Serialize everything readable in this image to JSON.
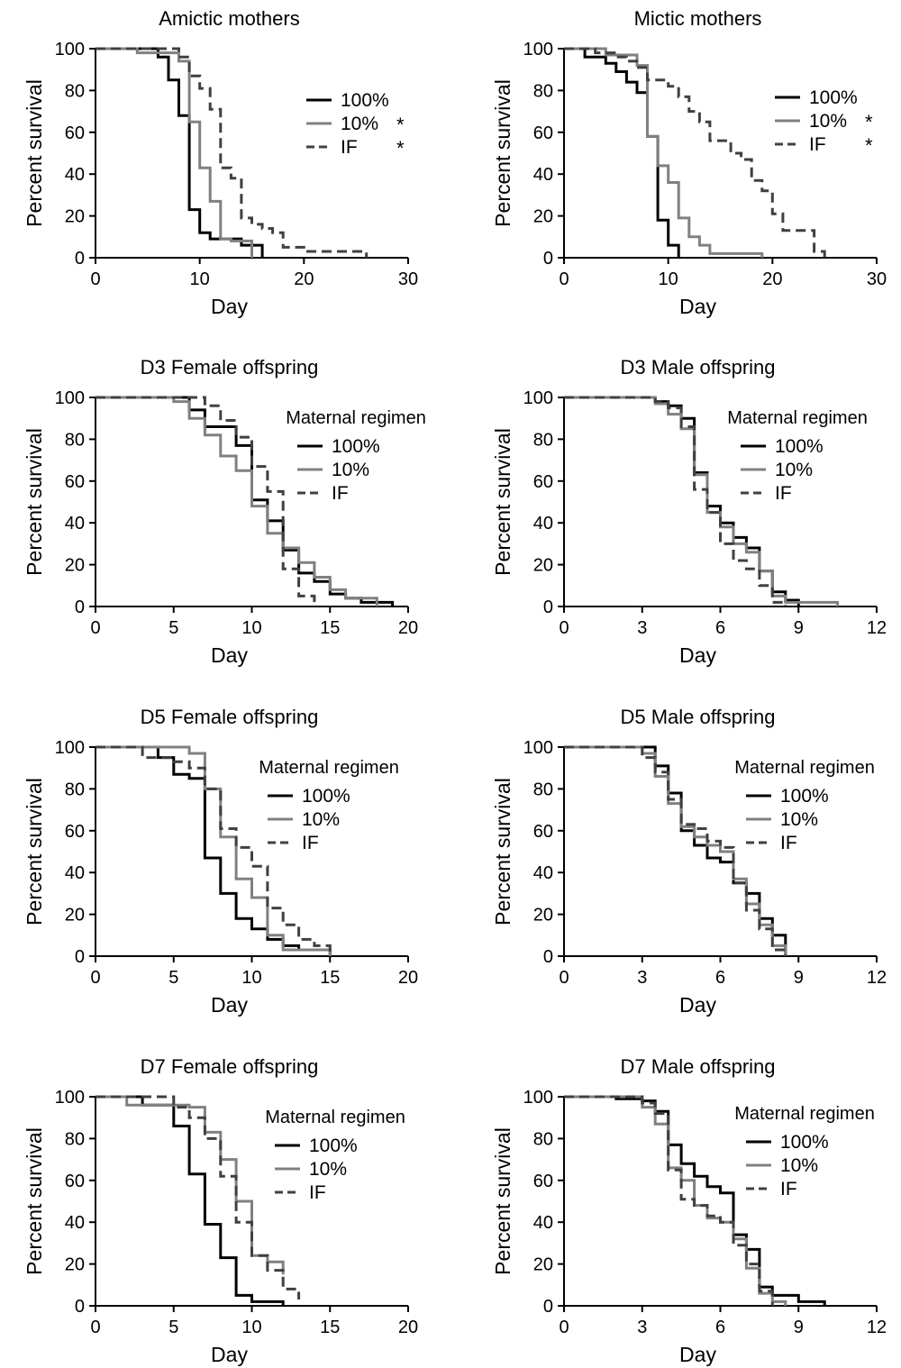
{
  "chart_data": [
    {
      "type": "line",
      "title": "Amictic mothers",
      "xlabel": "Day",
      "ylabel": "Percent survival",
      "xlim": [
        0,
        30
      ],
      "ylim": [
        0,
        100
      ],
      "xticks": [
        0,
        10,
        20,
        30
      ],
      "yticks": [
        0,
        20,
        40,
        60,
        80,
        100
      ],
      "legend_title": "",
      "legend_position": "top-right",
      "series": [
        {
          "name": "100%",
          "marker": "",
          "color": "#000000",
          "dash": false,
          "x": [
            0,
            6,
            7,
            8,
            9,
            10,
            11,
            14,
            16
          ],
          "y": [
            100,
            96,
            85,
            68,
            23,
            12,
            9,
            6,
            0
          ]
        },
        {
          "name": "10%",
          "marker": "*",
          "color": "#808080",
          "dash": false,
          "x": [
            0,
            4,
            8,
            9,
            10,
            11,
            12,
            13,
            15
          ],
          "y": [
            100,
            98,
            94,
            65,
            43,
            27,
            9,
            8,
            0
          ]
        },
        {
          "name": "IF",
          "marker": "*",
          "color": "#404040",
          "dash": true,
          "x": [
            0,
            8,
            9,
            10,
            11,
            12,
            13,
            14,
            15,
            16,
            17,
            18,
            20,
            26
          ],
          "y": [
            100,
            96,
            87,
            81,
            71,
            43,
            38,
            19,
            16,
            14,
            12,
            5,
            3,
            0
          ]
        }
      ]
    },
    {
      "type": "line",
      "title": "Mictic mothers",
      "xlabel": "Day",
      "ylabel": "Percent survival",
      "xlim": [
        0,
        30
      ],
      "ylim": [
        0,
        100
      ],
      "xticks": [
        0,
        10,
        20,
        30
      ],
      "yticks": [
        0,
        20,
        40,
        60,
        80,
        100
      ],
      "legend_title": "",
      "legend_position": "top-right",
      "series": [
        {
          "name": "100%",
          "marker": "",
          "color": "#000000",
          "dash": false,
          "x": [
            0,
            2,
            4,
            5,
            6,
            7,
            8,
            9,
            10,
            11
          ],
          "y": [
            100,
            96,
            93,
            89,
            84,
            79,
            58,
            18,
            6,
            0
          ]
        },
        {
          "name": "10%",
          "marker": "*",
          "color": "#808080",
          "dash": false,
          "x": [
            0,
            4,
            7,
            8,
            9,
            10,
            11,
            12,
            13,
            14,
            19
          ],
          "y": [
            100,
            97,
            92,
            58,
            44,
            36,
            19,
            10,
            6,
            2,
            0
          ]
        },
        {
          "name": "IF",
          "marker": "*",
          "color": "#404040",
          "dash": true,
          "x": [
            0,
            3,
            5,
            6,
            7,
            8,
            10,
            11,
            12,
            13,
            14,
            16,
            17,
            18,
            19,
            20,
            21,
            24,
            25
          ],
          "y": [
            100,
            98,
            96,
            94,
            91,
            85,
            82,
            77,
            70,
            65,
            56,
            50,
            47,
            37,
            32,
            21,
            13,
            3,
            0
          ]
        }
      ]
    },
    {
      "type": "line",
      "title": "D3 Female offspring",
      "xlabel": "Day",
      "ylabel": "Percent survival",
      "xlim": [
        0,
        20
      ],
      "ylim": [
        0,
        100
      ],
      "xticks": [
        0,
        5,
        10,
        15,
        20
      ],
      "yticks": [
        0,
        20,
        40,
        60,
        80,
        100
      ],
      "legend_title": "Maternal regimen",
      "legend_position": "top-right",
      "series": [
        {
          "name": "100%",
          "marker": "",
          "color": "#000000",
          "dash": false,
          "x": [
            0,
            6,
            7,
            9,
            10,
            11,
            12,
            13,
            14,
            15,
            16,
            17,
            19
          ],
          "y": [
            100,
            94,
            86,
            77,
            51,
            41,
            27,
            16,
            12,
            6,
            4,
            2,
            0
          ]
        },
        {
          "name": "10%",
          "marker": "",
          "color": "#808080",
          "dash": false,
          "x": [
            0,
            5,
            6,
            7,
            8,
            9,
            10,
            11,
            12,
            13,
            14,
            15,
            16,
            18
          ],
          "y": [
            100,
            98,
            90,
            82,
            72,
            65,
            48,
            35,
            28,
            21,
            14,
            8,
            4,
            0
          ]
        },
        {
          "name": "IF",
          "marker": "",
          "color": "#404040",
          "dash": true,
          "x": [
            0,
            7,
            8,
            9,
            10,
            11,
            12,
            13,
            14
          ],
          "y": [
            100,
            96,
            89,
            81,
            67,
            55,
            18,
            5,
            0
          ]
        }
      ]
    },
    {
      "type": "line",
      "title": "D3 Male offspring",
      "xlabel": "Day",
      "ylabel": "Percent survival",
      "xlim": [
        0,
        12
      ],
      "ylim": [
        0,
        100
      ],
      "xticks": [
        0,
        3,
        6,
        9,
        12
      ],
      "yticks": [
        0,
        20,
        40,
        60,
        80,
        100
      ],
      "legend_title": "Maternal regimen",
      "legend_position": "top-right",
      "series": [
        {
          "name": "100%",
          "marker": "",
          "color": "#000000",
          "dash": false,
          "x": [
            0,
            3.5,
            4,
            4.5,
            5,
            5.5,
            6,
            6.5,
            7,
            7.5,
            8,
            8.5,
            9
          ],
          "y": [
            100,
            98,
            96,
            90,
            64,
            48,
            40,
            33,
            28,
            17,
            7,
            3,
            0
          ]
        },
        {
          "name": "10%",
          "marker": "",
          "color": "#808080",
          "dash": false,
          "x": [
            0,
            3.5,
            4,
            4.5,
            5,
            5.5,
            6,
            6.5,
            7,
            7.5,
            8,
            8.5,
            10.5
          ],
          "y": [
            100,
            97,
            92,
            85,
            63,
            45,
            38,
            30,
            26,
            17,
            5,
            2,
            0
          ]
        },
        {
          "name": "IF",
          "marker": "",
          "color": "#404040",
          "dash": true,
          "x": [
            0,
            3.5,
            4,
            4.5,
            5,
            5.5,
            6,
            6.5,
            7,
            7.5,
            8,
            8.5
          ],
          "y": [
            100,
            98,
            95,
            86,
            56,
            45,
            30,
            22,
            18,
            10,
            2,
            0
          ]
        }
      ]
    },
    {
      "type": "line",
      "title": "D5 Female offspring",
      "xlabel": "Day",
      "ylabel": "Percent survival",
      "xlim": [
        0,
        20
      ],
      "ylim": [
        0,
        100
      ],
      "xticks": [
        0,
        5,
        10,
        15,
        20
      ],
      "yticks": [
        0,
        20,
        40,
        60,
        80,
        100
      ],
      "legend_title": "Maternal regimen",
      "legend_position": "top-right",
      "series": [
        {
          "name": "100%",
          "marker": "",
          "color": "#000000",
          "dash": false,
          "x": [
            0,
            4,
            5,
            6,
            7,
            8,
            9,
            10,
            11,
            12,
            13,
            15
          ],
          "y": [
            100,
            95,
            87,
            85,
            47,
            30,
            18,
            13,
            8,
            5,
            3,
            0
          ]
        },
        {
          "name": "10%",
          "marker": "",
          "color": "#808080",
          "dash": false,
          "x": [
            0,
            6,
            7,
            8,
            9,
            10,
            11,
            12,
            15
          ],
          "y": [
            100,
            97,
            80,
            57,
            37,
            28,
            10,
            3,
            0
          ]
        },
        {
          "name": "IF",
          "marker": "",
          "color": "#404040",
          "dash": true,
          "x": [
            0,
            3,
            5,
            6,
            7,
            8,
            9,
            10,
            11,
            12,
            13,
            14,
            15
          ],
          "y": [
            100,
            95,
            93,
            90,
            80,
            61,
            52,
            43,
            23,
            15,
            8,
            5,
            0
          ]
        }
      ]
    },
    {
      "type": "line",
      "title": "D5 Male offspring",
      "xlabel": "Day",
      "ylabel": "Percent survival",
      "xlim": [
        0,
        12
      ],
      "ylim": [
        0,
        100
      ],
      "xticks": [
        0,
        3,
        6,
        9,
        12
      ],
      "yticks": [
        0,
        20,
        40,
        60,
        80,
        100
      ],
      "legend_title": "Maternal regimen",
      "legend_position": "top-right",
      "series": [
        {
          "name": "100%",
          "marker": "",
          "color": "#000000",
          "dash": false,
          "x": [
            0,
            3.5,
            4,
            4.5,
            5,
            5.5,
            6,
            6.5,
            7,
            7.5,
            8,
            8.5
          ],
          "y": [
            100,
            91,
            78,
            60,
            53,
            47,
            45,
            35,
            30,
            18,
            10,
            0
          ]
        },
        {
          "name": "10%",
          "marker": "",
          "color": "#808080",
          "dash": false,
          "x": [
            0,
            3,
            3.5,
            4,
            4.5,
            5,
            5.5,
            6,
            6.5,
            7,
            7.5,
            8,
            8.5
          ],
          "y": [
            100,
            97,
            86,
            73,
            62,
            57,
            53,
            50,
            37,
            25,
            15,
            5,
            0
          ]
        },
        {
          "name": "IF",
          "marker": "",
          "color": "#404040",
          "dash": true,
          "x": [
            0,
            3,
            3.5,
            4,
            4.5,
            5,
            5.5,
            6,
            6.5,
            7,
            7.5,
            8,
            8.5
          ],
          "y": [
            100,
            95,
            88,
            75,
            63,
            61,
            55,
            52,
            35,
            22,
            13,
            3,
            0
          ]
        }
      ]
    },
    {
      "type": "line",
      "title": "D7 Female offspring",
      "xlabel": "Day",
      "ylabel": "Percent survival",
      "xlim": [
        0,
        20
      ],
      "ylim": [
        0,
        100
      ],
      "xticks": [
        0,
        5,
        10,
        15,
        20
      ],
      "yticks": [
        0,
        20,
        40,
        60,
        80,
        100
      ],
      "legend_title": "Maternal regimen",
      "legend_position": "top-right",
      "series": [
        {
          "name": "100%",
          "marker": "",
          "color": "#000000",
          "dash": false,
          "x": [
            0,
            3,
            5,
            6,
            7,
            8,
            9,
            10,
            12
          ],
          "y": [
            100,
            96,
            86,
            63,
            39,
            23,
            5,
            2,
            0
          ]
        },
        {
          "name": "10%",
          "marker": "",
          "color": "#808080",
          "dash": false,
          "x": [
            0,
            2,
            6,
            7,
            8,
            9,
            10,
            11,
            12
          ],
          "y": [
            100,
            96,
            95,
            83,
            70,
            50,
            24,
            21,
            15
          ]
        },
        {
          "name": "IF",
          "marker": "",
          "color": "#404040",
          "dash": true,
          "x": [
            0,
            5,
            6,
            7,
            8,
            9,
            10,
            11,
            12,
            13
          ],
          "y": [
            100,
            95,
            90,
            80,
            62,
            40,
            24,
            17,
            8,
            3
          ]
        }
      ]
    },
    {
      "type": "line",
      "title": "D7 Male offspring",
      "xlabel": "Day",
      "ylabel": "Percent survival",
      "xlim": [
        0,
        12
      ],
      "ylim": [
        0,
        100
      ],
      "xticks": [
        0,
        3,
        6,
        9,
        12
      ],
      "yticks": [
        0,
        20,
        40,
        60,
        80,
        100
      ],
      "legend_title": "Maternal regimen",
      "legend_position": "top-right",
      "series": [
        {
          "name": "100%",
          "marker": "",
          "color": "#000000",
          "dash": false,
          "x": [
            0,
            2,
            3,
            3.5,
            4,
            4.5,
            5,
            5.5,
            6,
            6.5,
            7,
            7.5,
            8,
            9,
            10
          ],
          "y": [
            100,
            99,
            98,
            93,
            77,
            68,
            62,
            57,
            54,
            34,
            27,
            9,
            5,
            2,
            0
          ]
        },
        {
          "name": "10%",
          "marker": "",
          "color": "#808080",
          "dash": false,
          "x": [
            0,
            3,
            3.5,
            4,
            4.5,
            5,
            5.5,
            6,
            6.5,
            7,
            7.5,
            8,
            8.5
          ],
          "y": [
            100,
            95,
            87,
            66,
            60,
            48,
            42,
            40,
            32,
            18,
            6,
            2,
            0
          ]
        },
        {
          "name": "IF",
          "marker": "",
          "color": "#404040",
          "dash": true,
          "x": [
            0,
            3,
            3.5,
            4,
            4.5,
            5,
            5.5,
            6,
            6.5,
            7,
            7.5,
            8
          ],
          "y": [
            100,
            97,
            92,
            65,
            51,
            48,
            43,
            40,
            29,
            20,
            7,
            0
          ]
        }
      ]
    }
  ]
}
